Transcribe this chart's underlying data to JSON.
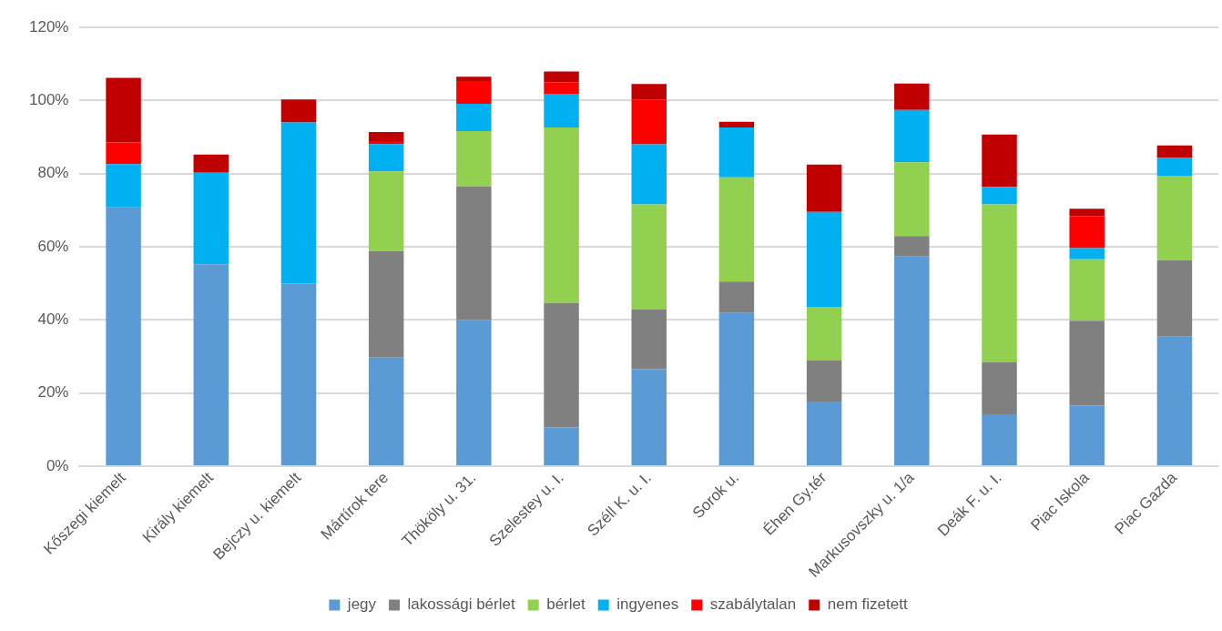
{
  "chart_data": {
    "type": "bar",
    "stacked": true,
    "grid": "y",
    "legend": "bottom",
    "categories": [
      "Kőszegi kiemelt",
      "Király kiemelt",
      "Bejczy u. kiemelt",
      "Mártírok tere",
      "Thököly u. 31.",
      "Szelestey u. I.",
      "Széll K. u. I.",
      "Sorok u.",
      "Éhen Gy.tér",
      "Markusovszky u. 1/a",
      "Deák F. u. I.",
      "Piac Iskola",
      "Piac Gazda"
    ],
    "ylim": [
      0,
      120
    ],
    "yticks": [
      {
        "value": 0,
        "label": "0%"
      },
      {
        "value": 20,
        "label": "20%"
      },
      {
        "value": 40,
        "label": "40%"
      },
      {
        "value": 60,
        "label": "60%"
      },
      {
        "value": 80,
        "label": "80%"
      },
      {
        "value": 100,
        "label": "100%"
      },
      {
        "value": 120,
        "label": "120%"
      }
    ],
    "series": [
      {
        "name": "jegy",
        "color": "#5b9bd5",
        "values": [
          70.8,
          55.2,
          50,
          29.7,
          40,
          10.6,
          26.5,
          41.9,
          17.7,
          57.3,
          14.2,
          16.6,
          35.4
        ]
      },
      {
        "name": "lakossági bérlet",
        "color": "#808080",
        "values": [
          0,
          0,
          0,
          29.1,
          36.5,
          34,
          16.3,
          8.6,
          11.3,
          5.6,
          14.2,
          23.2,
          20.9
        ]
      },
      {
        "name": "bérlet",
        "color": "#92d050",
        "values": [
          0,
          0,
          0,
          21.8,
          15.1,
          48,
          28.8,
          28.5,
          14.6,
          20.2,
          43.2,
          16.8,
          23.1
        ]
      },
      {
        "name": "ingyenes",
        "color": "#00b0f0",
        "values": [
          11.8,
          25,
          44,
          7.5,
          7.5,
          9.2,
          16.4,
          13.6,
          25.9,
          14.3,
          4.8,
          3,
          4.9
        ]
      },
      {
        "name": "szabálytalan",
        "color": "#ff0000",
        "values": [
          5.9,
          0,
          0,
          0.8,
          6.2,
          3.2,
          12.3,
          0,
          0,
          0,
          0,
          8.8,
          0
        ]
      },
      {
        "name": "nem fizetett",
        "color": "#c00000",
        "values": [
          17.7,
          5,
          6.3,
          2.5,
          1.2,
          2.9,
          4.2,
          1.6,
          13,
          7.2,
          14.3,
          2,
          3.4
        ]
      }
    ]
  }
}
